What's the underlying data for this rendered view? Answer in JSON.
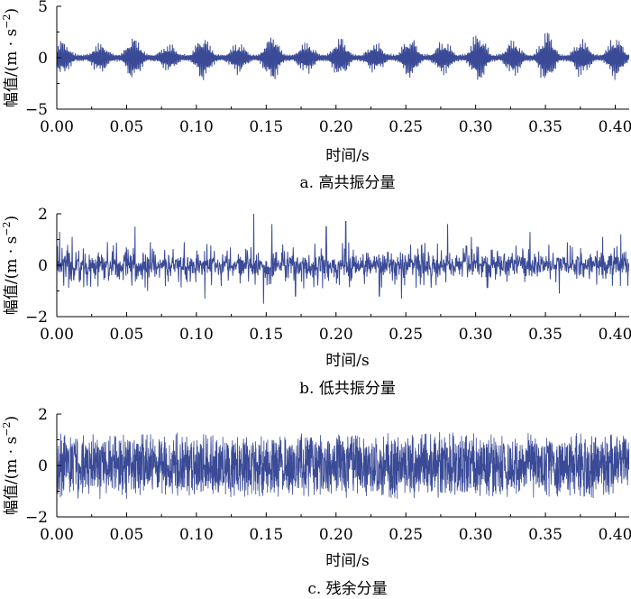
{
  "line_color": "#3a4a96",
  "chart_data": [
    {
      "type": "line",
      "caption": "a. 高共振分量",
      "xlabel": "时间/s",
      "ylabel": "幅值/(m · s",
      "ylabel_sup": "−2",
      "ylabel_close": ")",
      "xlim": [
        0,
        0.41
      ],
      "ylim": [
        -5,
        5
      ],
      "xticks": [
        0,
        0.05,
        0.1,
        0.15,
        0.2,
        0.25,
        0.3,
        0.35,
        0.4
      ],
      "xtick_labels": [
        "0.00",
        "0.05",
        "0.10",
        "0.15",
        "0.20",
        "0.25",
        "0.30",
        "0.35",
        "0.40"
      ],
      "yticks": [
        -5,
        0,
        5
      ],
      "ytick_labels": [
        "−5",
        "0",
        "5"
      ],
      "signal": {
        "kind": "amplitude-modulated oscillation",
        "bursts_at_s": [
          0.004,
          0.031,
          0.055,
          0.08,
          0.105,
          0.13,
          0.154,
          0.179,
          0.203,
          0.228,
          0.253,
          0.277,
          0.302,
          0.327,
          0.351,
          0.376,
          0.4
        ],
        "peak_amplitude": [
          1.7,
          1.5,
          2.1,
          1.4,
          2.2,
          1.5,
          2.3,
          1.6,
          2.0,
          1.5,
          2.0,
          1.7,
          2.4,
          1.8,
          2.5,
          1.9,
          2.1
        ],
        "trough_amplitude": 0.35,
        "oscillation_frequency_hz": 1150,
        "sample_count": 1640
      }
    },
    {
      "type": "line",
      "caption": "b. 低共振分量",
      "xlabel": "时间/s",
      "ylabel": "幅值/(m · s",
      "ylabel_sup": "−2",
      "ylabel_close": ")",
      "xlim": [
        0,
        0.41
      ],
      "ylim": [
        -2,
        2
      ],
      "xticks": [
        0,
        0.05,
        0.1,
        0.15,
        0.2,
        0.25,
        0.3,
        0.35,
        0.4
      ],
      "xtick_labels": [
        "0.00",
        "0.05",
        "0.10",
        "0.15",
        "0.20",
        "0.25",
        "0.30",
        "0.35",
        "0.40"
      ],
      "yticks": [
        -2,
        0,
        2
      ],
      "ytick_labels": [
        "−2",
        "0",
        "2"
      ],
      "signal": {
        "kind": "sparse impulsive oscillation",
        "typical_amplitude": 0.6,
        "max_amplitude": 2.0,
        "min_amplitude": -1.6,
        "spikes": [
          {
            "t": 0.002,
            "v": 1.3
          },
          {
            "t": 0.005,
            "v": -0.8
          },
          {
            "t": 0.011,
            "v": 1.1
          },
          {
            "t": 0.056,
            "v": 1.5
          },
          {
            "t": 0.065,
            "v": -1.0
          },
          {
            "t": 0.067,
            "v": 0.9
          },
          {
            "t": 0.106,
            "v": -1.3
          },
          {
            "t": 0.141,
            "v": 2.0
          },
          {
            "t": 0.148,
            "v": -1.5
          },
          {
            "t": 0.154,
            "v": 1.6
          },
          {
            "t": 0.171,
            "v": -1.2
          },
          {
            "t": 0.193,
            "v": 1.5
          },
          {
            "t": 0.207,
            "v": 1.7
          },
          {
            "t": 0.231,
            "v": -1.2
          },
          {
            "t": 0.247,
            "v": -1.3
          },
          {
            "t": 0.28,
            "v": 1.6
          },
          {
            "t": 0.297,
            "v": 1.1
          },
          {
            "t": 0.339,
            "v": 1.3
          },
          {
            "t": 0.36,
            "v": -1.1
          },
          {
            "t": 0.391,
            "v": 1.1
          },
          {
            "t": 0.404,
            "v": 1.2
          },
          {
            "t": 0.409,
            "v": -0.8
          }
        ],
        "sample_count": 1640
      }
    },
    {
      "type": "line",
      "caption": "c. 残余分量",
      "xlabel": "时间/s",
      "ylabel": "幅值/(m · s",
      "ylabel_sup": "−2",
      "ylabel_close": ")",
      "xlim": [
        0,
        0.41
      ],
      "ylim": [
        -2,
        2
      ],
      "xticks": [
        0,
        0.05,
        0.1,
        0.15,
        0.2,
        0.25,
        0.3,
        0.35,
        0.4
      ],
      "xtick_labels": [
        "0.00",
        "0.05",
        "0.10",
        "0.15",
        "0.20",
        "0.25",
        "0.30",
        "0.35",
        "0.40"
      ],
      "yticks": [
        -2,
        0,
        2
      ],
      "ytick_labels": [
        "−2",
        "0",
        "2"
      ],
      "signal": {
        "kind": "dense broadband noise",
        "envelope_amplitude": 1.35,
        "max_amplitude": 1.4,
        "min_amplitude": -1.3,
        "sample_count": 2800
      }
    }
  ]
}
